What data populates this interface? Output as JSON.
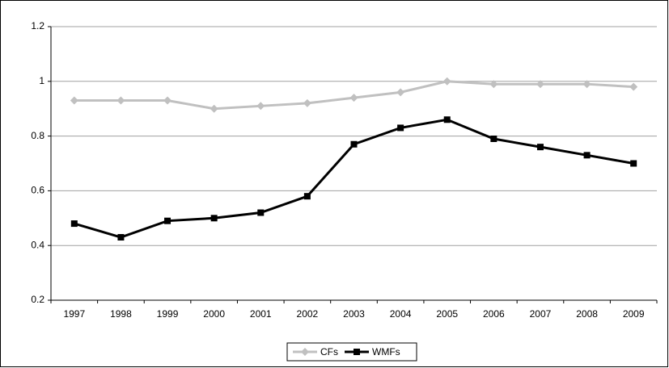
{
  "chart_data": {
    "type": "line",
    "categories": [
      "1997",
      "1998",
      "1999",
      "2000",
      "2001",
      "2002",
      "2003",
      "2004",
      "2005",
      "2006",
      "2007",
      "2008",
      "2009"
    ],
    "series": [
      {
        "name": "CFs",
        "color": "#c0c0c0",
        "marker": "diamond",
        "values": [
          0.93,
          0.93,
          0.93,
          0.9,
          0.91,
          0.92,
          0.94,
          0.96,
          1.0,
          0.99,
          0.99,
          0.99,
          0.98
        ]
      },
      {
        "name": "WMFs",
        "color": "#000000",
        "marker": "square",
        "values": [
          0.48,
          0.43,
          0.49,
          0.5,
          0.52,
          0.58,
          0.77,
          0.83,
          0.86,
          0.79,
          0.76,
          0.73,
          0.7
        ]
      }
    ],
    "ylim": [
      0.2,
      1.2
    ],
    "yticks": [
      0.2,
      0.4,
      0.6,
      0.8,
      1,
      1.2
    ],
    "grid": true,
    "legend": "bottom"
  }
}
